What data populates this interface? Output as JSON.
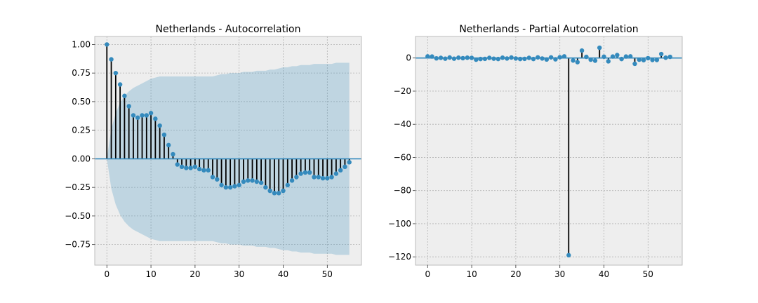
{
  "chart_data": [
    {
      "type": "stem",
      "title": "Netherlands - Autocorrelation",
      "xlabel": "",
      "ylabel": "",
      "xlim": [
        -2.75,
        57.75
      ],
      "ylim": [
        -0.93,
        1.07
      ],
      "xticks": [
        0,
        10,
        20,
        30,
        40,
        50
      ],
      "yticks": [
        -0.75,
        -0.5,
        -0.25,
        0.0,
        0.25,
        0.5,
        0.75,
        1.0
      ],
      "ytick_labels": [
        "−0.75",
        "−0.50",
        "−0.25",
        "0.00",
        "0.25",
        "0.50",
        "0.75",
        "1.00"
      ],
      "grid": true,
      "colors": {
        "marker": "#348ABD",
        "stem": "#000000",
        "zero_line": "#348ABD",
        "band": "#348ABD",
        "axes_bg": "#EEEEEE"
      },
      "x": [
        0,
        1,
        2,
        3,
        4,
        5,
        6,
        7,
        8,
        9,
        10,
        11,
        12,
        13,
        14,
        15,
        16,
        17,
        18,
        19,
        20,
        21,
        22,
        23,
        24,
        25,
        26,
        27,
        28,
        29,
        30,
        31,
        32,
        33,
        34,
        35,
        36,
        37,
        38,
        39,
        40,
        41,
        42,
        43,
        44,
        45,
        46,
        47,
        48,
        49,
        50,
        51,
        52,
        53,
        54,
        55
      ],
      "values": [
        1.0,
        0.87,
        0.75,
        0.65,
        0.55,
        0.46,
        0.38,
        0.36,
        0.38,
        0.38,
        0.4,
        0.35,
        0.29,
        0.21,
        0.12,
        0.04,
        -0.05,
        -0.07,
        -0.08,
        -0.08,
        -0.07,
        -0.09,
        -0.1,
        -0.1,
        -0.16,
        -0.18,
        -0.23,
        -0.25,
        -0.25,
        -0.24,
        -0.23,
        -0.2,
        -0.19,
        -0.19,
        -0.2,
        -0.21,
        -0.25,
        -0.28,
        -0.3,
        -0.3,
        -0.28,
        -0.23,
        -0.19,
        -0.16,
        -0.13,
        -0.12,
        -0.12,
        -0.16,
        -0.16,
        -0.17,
        -0.17,
        -0.16,
        -0.13,
        -0.1,
        -0.07,
        -0.03
      ],
      "conf_band_x": [
        0,
        1,
        2,
        3,
        4,
        5,
        6,
        7,
        8,
        9,
        10,
        11,
        12,
        13,
        14,
        15,
        16,
        17,
        18,
        19,
        20,
        21,
        22,
        23,
        24,
        25,
        26,
        27,
        28,
        29,
        30,
        31,
        32,
        33,
        34,
        35,
        36,
        37,
        38,
        39,
        40,
        41,
        42,
        43,
        44,
        45,
        46,
        47,
        48,
        49,
        50,
        51,
        52,
        53,
        54,
        55
      ],
      "conf_band_upper": [
        0.0,
        0.26,
        0.4,
        0.49,
        0.55,
        0.59,
        0.62,
        0.64,
        0.66,
        0.68,
        0.7,
        0.71,
        0.72,
        0.72,
        0.72,
        0.72,
        0.72,
        0.72,
        0.72,
        0.72,
        0.72,
        0.72,
        0.72,
        0.72,
        0.72,
        0.73,
        0.74,
        0.74,
        0.75,
        0.75,
        0.75,
        0.76,
        0.76,
        0.76,
        0.77,
        0.77,
        0.77,
        0.78,
        0.78,
        0.79,
        0.8,
        0.8,
        0.81,
        0.81,
        0.82,
        0.82,
        0.82,
        0.83,
        0.83,
        0.83,
        0.83,
        0.83,
        0.84,
        0.84,
        0.84,
        0.84
      ]
    },
    {
      "type": "stem",
      "title": "Netherlands - Partial Autocorrelation",
      "xlabel": "",
      "ylabel": "",
      "xlim": [
        -2.75,
        57.75
      ],
      "ylim": [
        -125,
        13
      ],
      "xticks": [
        0,
        10,
        20,
        30,
        40,
        50
      ],
      "yticks": [
        -120,
        -100,
        -80,
        -60,
        -40,
        -20,
        0
      ],
      "ytick_labels": [
        "−120",
        "−100",
        "−80",
        "−60",
        "−40",
        "−20",
        "0"
      ],
      "grid": true,
      "colors": {
        "marker": "#348ABD",
        "stem": "#000000",
        "zero_line": "#348ABD",
        "band": "#348ABD",
        "axes_bg": "#EEEEEE"
      },
      "x": [
        0,
        1,
        2,
        3,
        4,
        5,
        6,
        7,
        8,
        9,
        10,
        11,
        12,
        13,
        14,
        15,
        16,
        17,
        18,
        19,
        20,
        21,
        22,
        23,
        24,
        25,
        26,
        27,
        28,
        29,
        30,
        31,
        32,
        33,
        34,
        35,
        36,
        37,
        38,
        39,
        40,
        41,
        42,
        43,
        44,
        45,
        46,
        47,
        48,
        49,
        50,
        51,
        52,
        53,
        54,
        55
      ],
      "values": [
        1.0,
        0.9,
        -0.2,
        0.1,
        -0.4,
        0.3,
        -0.4,
        0.2,
        -0.1,
        0.2,
        0.1,
        -1.0,
        -0.6,
        -0.5,
        0.1,
        -0.4,
        -0.6,
        0.2,
        -0.3,
        0.3,
        -0.3,
        -0.6,
        -0.5,
        0.1,
        -0.6,
        0.4,
        -0.3,
        -0.9,
        0.4,
        -0.8,
        0.5,
        1.0,
        -119.0,
        -1.5,
        -2.5,
        4.5,
        0.7,
        -1.0,
        -1.6,
        6.2,
        0.8,
        -2.0,
        0.9,
        1.8,
        -0.6,
        0.9,
        1.0,
        -3.5,
        -1.0,
        -1.3,
        -0.1,
        -1.2,
        -1.2,
        2.4,
        0.2,
        0.7
      ],
      "conf_band_x": [
        0,
        1,
        2,
        3,
        4,
        5,
        6,
        7,
        8,
        9,
        10,
        11,
        12,
        13,
        14,
        15,
        16,
        17,
        18,
        19,
        20,
        21,
        22,
        23,
        24,
        25,
        26,
        27,
        28,
        29,
        30,
        31,
        32,
        33,
        34,
        35,
        36,
        37,
        38,
        39,
        40,
        41,
        42,
        43,
        44,
        45,
        46,
        47,
        48,
        49,
        50,
        51,
        52,
        53,
        54,
        55
      ],
      "conf_band_upper": [
        0.26,
        0.26,
        0.26,
        0.26,
        0.26,
        0.26,
        0.26,
        0.26,
        0.26,
        0.26,
        0.26,
        0.26,
        0.26,
        0.26,
        0.26,
        0.26,
        0.26,
        0.26,
        0.26,
        0.26,
        0.26,
        0.26,
        0.26,
        0.26,
        0.26,
        0.26,
        0.26,
        0.26,
        0.26,
        0.26,
        0.26,
        0.26,
        0.26,
        0.26,
        0.26,
        0.26,
        0.26,
        0.26,
        0.26,
        0.26,
        0.26,
        0.26,
        0.26,
        0.26,
        0.26,
        0.26,
        0.26,
        0.26,
        0.26,
        0.26,
        0.26,
        0.26,
        0.26,
        0.26,
        0.26,
        0.26
      ]
    }
  ]
}
